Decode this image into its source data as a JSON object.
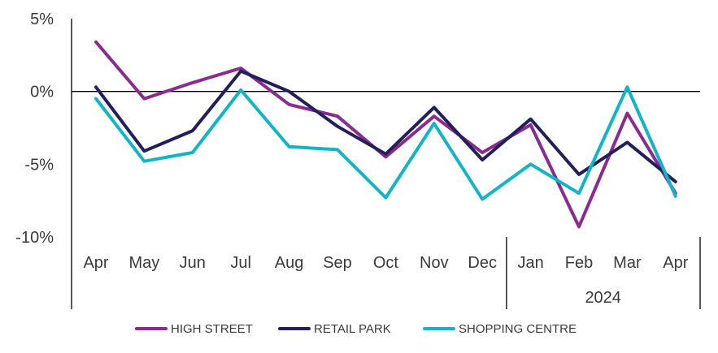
{
  "chart_data": {
    "type": "line",
    "categories": [
      "Apr",
      "May",
      "Jun",
      "Jul",
      "Aug",
      "Sep",
      "Oct",
      "Nov",
      "Dec",
      "Jan",
      "Feb",
      "Mar",
      "Apr"
    ],
    "category_groups": [
      {
        "label": "",
        "categories": [
          "Apr",
          "May",
          "Jun",
          "Jul",
          "Aug",
          "Sep",
          "Oct",
          "Nov",
          "Dec"
        ]
      },
      {
        "label": "2024",
        "categories": [
          "Jan",
          "Feb",
          "Mar",
          "Apr"
        ]
      }
    ],
    "y_ticks": [
      "5%",
      "0%",
      "-5%",
      "-10%"
    ],
    "ylim": [
      -10,
      5
    ],
    "unit": "%",
    "series": [
      {
        "name": "HIGH STREET",
        "color": "#8b2a8f",
        "values": [
          3.4,
          -0.5,
          0.6,
          1.6,
          -0.9,
          -1.7,
          -4.5,
          -1.7,
          -4.2,
          -2.3,
          -9.3,
          -1.5,
          -7.0
        ]
      },
      {
        "name": "RETAIL PARK",
        "color": "#22205a",
        "values": [
          0.3,
          -4.1,
          -2.7,
          1.4,
          0.0,
          -2.4,
          -4.3,
          -1.1,
          -4.7,
          -1.9,
          -5.7,
          -3.5,
          -6.2
        ]
      },
      {
        "name": "SHOPPING CENTRE",
        "color": "#12b5c6",
        "values": [
          -0.5,
          -4.8,
          -4.2,
          0.1,
          -3.8,
          -4.0,
          -7.3,
          -2.2,
          -7.4,
          -5.0,
          -7.0,
          0.3,
          -7.2
        ]
      }
    ],
    "legend": "bottom",
    "grid": false
  }
}
